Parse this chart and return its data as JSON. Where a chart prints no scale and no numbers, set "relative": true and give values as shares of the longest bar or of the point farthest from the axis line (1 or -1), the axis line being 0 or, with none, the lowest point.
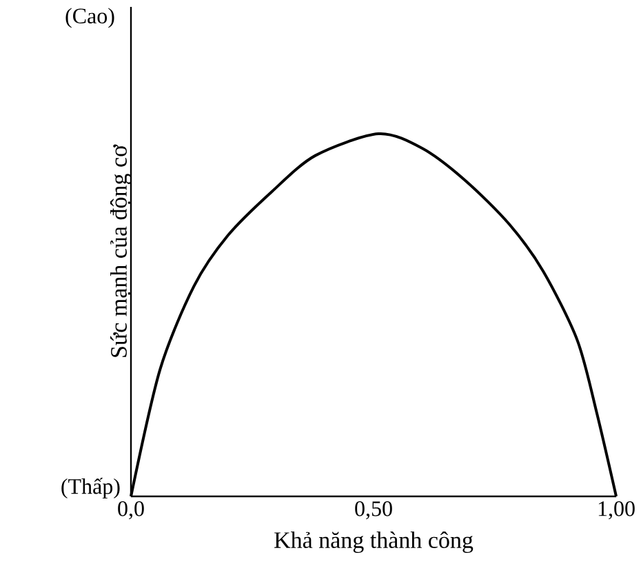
{
  "chart_data": {
    "type": "line",
    "relative": true,
    "xlabel": "Khả năng thành công",
    "ylabel": "Sức mạnh của động cơ",
    "annotations": [
      "(Cao)",
      "(Thấp)"
    ],
    "xlim": [
      0,
      1
    ],
    "xticks": [
      {
        "value": 0,
        "label": "0,0"
      },
      {
        "value": 0.5,
        "label": "0,50"
      },
      {
        "value": 1,
        "label": "1,00"
      }
    ],
    "x": [
      0,
      0.06,
      0.13,
      0.2,
      0.29,
      0.38,
      0.51,
      0.6,
      0.69,
      0.78,
      0.85,
      0.92,
      0.96,
      1.0
    ],
    "values": [
      0,
      0.35,
      0.58,
      0.72,
      0.84,
      0.94,
      1.0,
      0.96,
      0.87,
      0.75,
      0.62,
      0.43,
      0.23,
      0
    ],
    "color": "#000000",
    "marker": "none",
    "line_style": "solid"
  }
}
